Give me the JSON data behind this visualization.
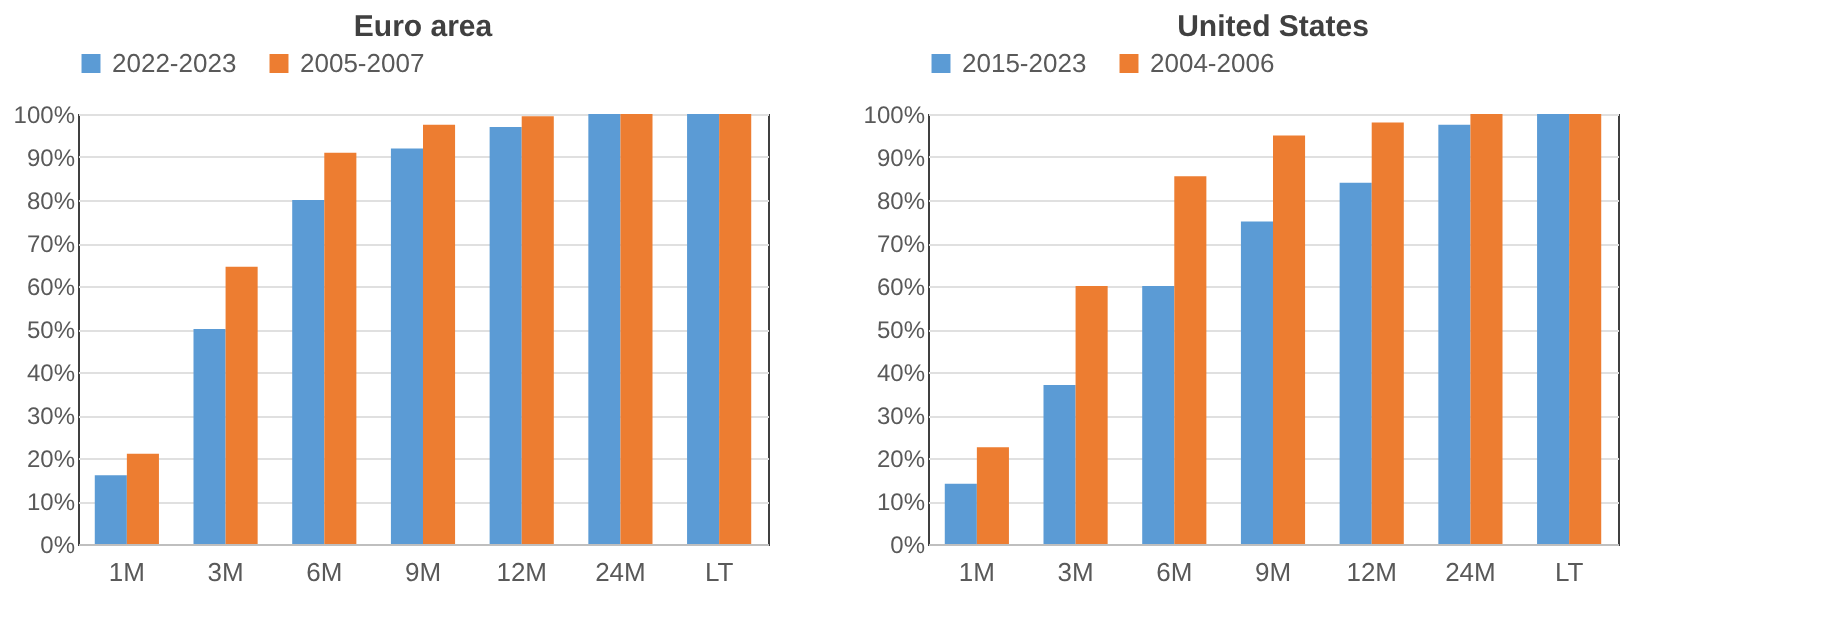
{
  "chart_data": [
    {
      "type": "bar",
      "title": "Euro area",
      "categories": [
        "1M",
        "3M",
        "6M",
        "9M",
        "12M",
        "24M",
        "LT"
      ],
      "series": [
        {
          "name": "2022-2023",
          "color": "#5b9bd5",
          "values": [
            16,
            50,
            80,
            92,
            97,
            100,
            100
          ]
        },
        {
          "name": "2005-2007",
          "color": "#ed7d31",
          "values": [
            21,
            64.5,
            91,
            97.5,
            99.5,
            100,
            100
          ]
        }
      ],
      "ylim": [
        0,
        100
      ],
      "yticks": [
        {
          "value": 0,
          "label": "0%"
        },
        {
          "value": 10,
          "label": "10%"
        },
        {
          "value": 20,
          "label": "20%"
        },
        {
          "value": 30,
          "label": "30%"
        },
        {
          "value": 40,
          "label": "40%"
        },
        {
          "value": 50,
          "label": "50%"
        },
        {
          "value": 60,
          "label": "60%"
        },
        {
          "value": 70,
          "label": "70%"
        },
        {
          "value": 80,
          "label": "80%"
        },
        {
          "value": 90,
          "label": "90%"
        },
        {
          "value": 100,
          "label": "100%"
        }
      ],
      "grid": "y",
      "legend": "top"
    },
    {
      "type": "bar",
      "title": "United States",
      "categories": [
        "1M",
        "3M",
        "6M",
        "9M",
        "12M",
        "24M",
        "LT"
      ],
      "series": [
        {
          "name": "2015-2023",
          "color": "#5b9bd5",
          "values": [
            14,
            37,
            60,
            75,
            84,
            97.5,
            100
          ]
        },
        {
          "name": "2004-2006",
          "color": "#ed7d31",
          "values": [
            22.5,
            60,
            85.5,
            95,
            98,
            100,
            100
          ]
        }
      ],
      "ylim": [
        0,
        100
      ],
      "yticks": [
        {
          "value": 0,
          "label": "0%"
        },
        {
          "value": 10,
          "label": "10%"
        },
        {
          "value": 20,
          "label": "20%"
        },
        {
          "value": 30,
          "label": "30%"
        },
        {
          "value": 40,
          "label": "40%"
        },
        {
          "value": 50,
          "label": "50%"
        },
        {
          "value": 60,
          "label": "60%"
        },
        {
          "value": 70,
          "label": "70%"
        },
        {
          "value": 80,
          "label": "80%"
        },
        {
          "value": 90,
          "label": "90%"
        },
        {
          "value": 100,
          "label": "100%"
        }
      ],
      "grid": "y",
      "legend": "top"
    }
  ]
}
